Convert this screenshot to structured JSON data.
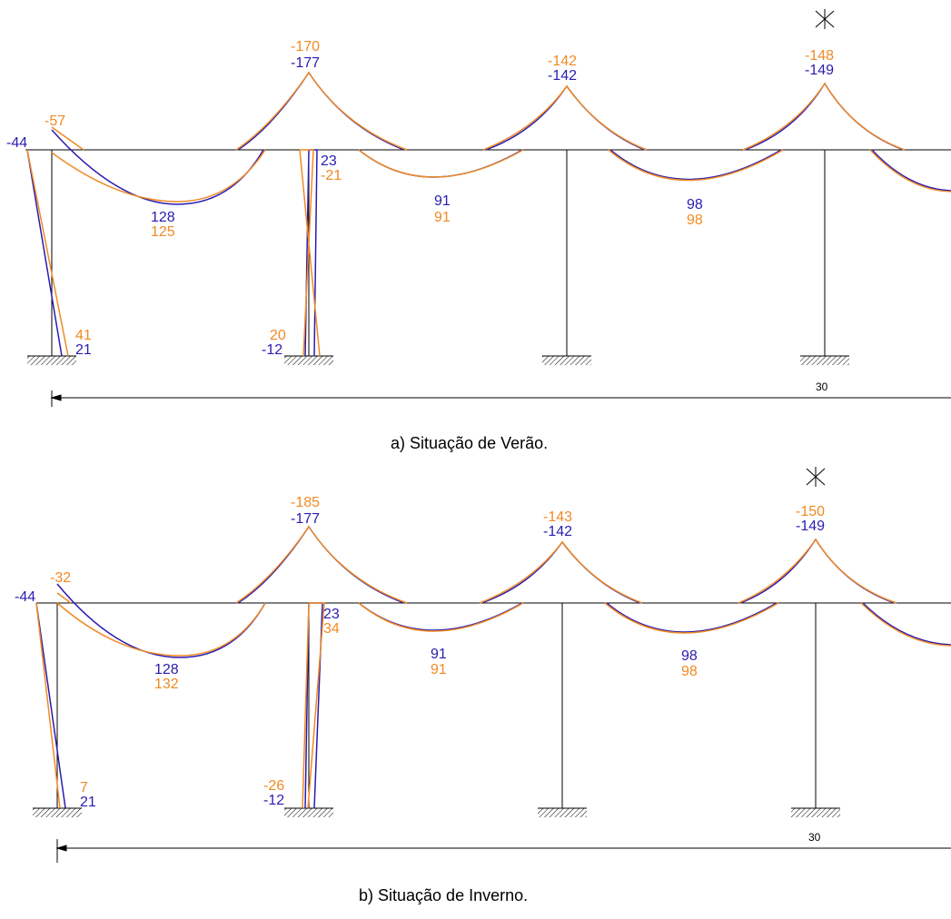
{
  "colors": {
    "summer_or_winter": "#f08a24",
    "reference": "#2a1cb0",
    "frame": "#000000"
  },
  "diagram_a": {
    "caption": "a) Situação de Verão.",
    "dimension_label": "30",
    "labels": {
      "col1_top_orange": "-57",
      "col1_top_blue": "-44",
      "col1_base_orange": "41",
      "col1_base_blue": "21",
      "span1_orange": "125",
      "span1_blue": "128",
      "sup1_orange": "-170",
      "sup1_blue": "-177",
      "col2_top_blue": "23",
      "col2_top_orange": "-21",
      "col2_base_orange": "20",
      "col2_base_blue": "-12",
      "span2_blue": "91",
      "span2_orange": "91",
      "sup2_orange": "-142",
      "sup2_blue": "-142",
      "span3_blue": "98",
      "span3_orange": "98",
      "sup3_orange": "-148",
      "sup3_blue": "-149"
    }
  },
  "diagram_b": {
    "caption": "b) Situação de Inverno.",
    "dimension_label": "30",
    "labels": {
      "col1_top_orange": "-32",
      "col1_top_blue": "-44",
      "col1_base_orange": "7",
      "col1_base_blue": "21",
      "span1_blue": "128",
      "span1_orange": "132",
      "sup1_orange": "-185",
      "sup1_blue": "-177",
      "col2_top_blue": "23",
      "col2_top_orange": "34",
      "col2_base_orange": "-26",
      "col2_base_blue": "-12",
      "span2_blue": "91",
      "span2_orange": "91",
      "sup2_orange": "-143",
      "sup2_blue": "-142",
      "span3_blue": "98",
      "span3_orange": "98",
      "sup3_orange": "-150",
      "sup3_blue": "-149"
    }
  }
}
